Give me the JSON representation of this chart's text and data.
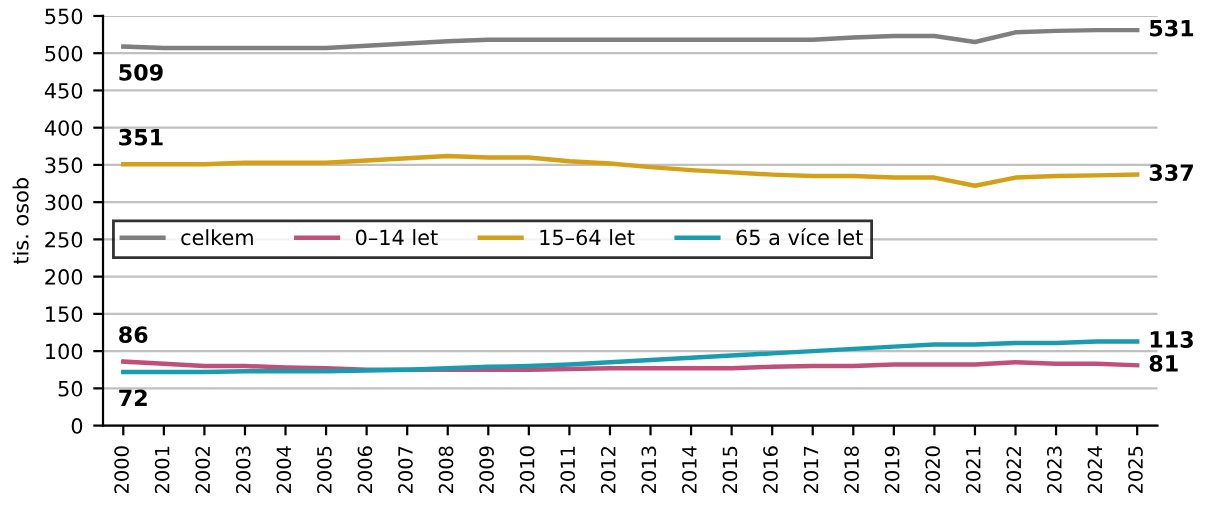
{
  "chart_data": {
    "type": "line",
    "ylabel": "tis. osob",
    "categories": [
      "2000",
      "2001",
      "2002",
      "2003",
      "2004",
      "2005",
      "2006",
      "2007",
      "2008",
      "2009",
      "2010",
      "2011",
      "2012",
      "2013",
      "2014",
      "2015",
      "2016",
      "2017",
      "2018",
      "2019",
      "2020",
      "2021",
      "2022",
      "2023",
      "2024",
      "2025"
    ],
    "series": [
      {
        "name": "celkem",
        "color": "#7f7f7f",
        "values": [
          509,
          507,
          507,
          507,
          507,
          507,
          510,
          513,
          516,
          518,
          518,
          518,
          518,
          518,
          518,
          518,
          518,
          518,
          521,
          523,
          523,
          515,
          528,
          530,
          531,
          531
        ]
      },
      {
        "name": "0–14 let",
        "color": "#c0507a",
        "values": [
          86,
          83,
          80,
          80,
          78,
          77,
          75,
          75,
          75,
          75,
          75,
          76,
          77,
          77,
          77,
          77,
          79,
          80,
          80,
          82,
          82,
          82,
          85,
          83,
          83,
          81
        ]
      },
      {
        "name": "15–64 let",
        "color": "#d4a017",
        "values": [
          351,
          351,
          351,
          353,
          353,
          353,
          356,
          359,
          362,
          360,
          360,
          355,
          352,
          347,
          343,
          340,
          337,
          335,
          335,
          333,
          333,
          322,
          333,
          335,
          336,
          337
        ]
      },
      {
        "name": "65 a více let",
        "color": "#1a9cb0",
        "values": [
          72,
          72,
          72,
          73,
          73,
          73,
          74,
          75,
          77,
          79,
          80,
          82,
          85,
          88,
          91,
          94,
          97,
          100,
          103,
          106,
          109,
          109,
          111,
          111,
          113,
          113
        ]
      }
    ],
    "ylim": [
      0,
      550
    ],
    "yticks": [
      0,
      50,
      100,
      150,
      200,
      250,
      300,
      350,
      400,
      450,
      500,
      550
    ],
    "grid": "y",
    "legend": "center left",
    "marker": "none",
    "line_style": "solid",
    "annotations": [
      {
        "text": "509",
        "x": "2000",
        "y": 509
      },
      {
        "text": "531",
        "x": "2025",
        "y": 531
      },
      {
        "text": "351",
        "x": "2000",
        "y": 351
      },
      {
        "text": "337",
        "x": "2025",
        "y": 337
      },
      {
        "text": "86",
        "x": "2000",
        "y": 86
      },
      {
        "text": "81",
        "x": "2025",
        "y": 81
      },
      {
        "text": "72",
        "x": "2000",
        "y": 72
      },
      {
        "text": "113",
        "x": "2025",
        "y": 113
      }
    ]
  }
}
